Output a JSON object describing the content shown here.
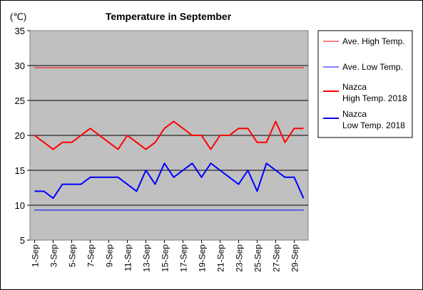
{
  "chart_data": {
    "type": "line",
    "title": "Temperature in September",
    "unit_label": "(℃)",
    "ylim": [
      5,
      35
    ],
    "yticks": [
      5,
      10,
      15,
      20,
      25,
      30,
      35
    ],
    "grid": "horizontal",
    "legend_position": "right",
    "x": [
      "1-Sep",
      "2-Sep",
      "3-Sep",
      "4-Sep",
      "5-Sep",
      "6-Sep",
      "7-Sep",
      "8-Sep",
      "9-Sep",
      "10-Sep",
      "11-Sep",
      "12-Sep",
      "13-Sep",
      "14-Sep",
      "15-Sep",
      "16-Sep",
      "17-Sep",
      "18-Sep",
      "19-Sep",
      "20-Sep",
      "21-Sep",
      "22-Sep",
      "23-Sep",
      "24-Sep",
      "25-Sep",
      "26-Sep",
      "27-Sep",
      "28-Sep",
      "29-Sep",
      "30-Sep"
    ],
    "xtick_labels": [
      "1-Sep",
      "3-Sep",
      "5-Sep",
      "7-Sep",
      "9-Sep",
      "11-Sep",
      "13-Sep",
      "15-Sep",
      "17-Sep",
      "19-Sep",
      "21-Sep",
      "23-Sep",
      "25-Sep",
      "27-Sep",
      "29-Sep"
    ],
    "series": [
      {
        "name": "Ave. High Temp.",
        "color": "#ff0000",
        "style": "thin",
        "values": [
          29.7,
          29.7,
          29.7,
          29.7,
          29.7,
          29.7,
          29.7,
          29.7,
          29.7,
          29.7,
          29.7,
          29.7,
          29.7,
          29.7,
          29.7,
          29.7,
          29.7,
          29.7,
          29.7,
          29.7,
          29.7,
          29.7,
          29.7,
          29.7,
          29.7,
          29.7,
          29.7,
          29.7,
          29.7,
          29.7
        ]
      },
      {
        "name": "Ave. Low Temp.",
        "color": "#0000ff",
        "style": "thin",
        "values": [
          9.3,
          9.3,
          9.3,
          9.3,
          9.3,
          9.3,
          9.3,
          9.3,
          9.3,
          9.3,
          9.3,
          9.3,
          9.3,
          9.3,
          9.3,
          9.3,
          9.3,
          9.3,
          9.3,
          9.3,
          9.3,
          9.3,
          9.3,
          9.3,
          9.3,
          9.3,
          9.3,
          9.3,
          9.3,
          9.3
        ]
      },
      {
        "name": "Nazca\nHigh Temp. 2018",
        "color": "#ff0000",
        "style": "thick",
        "values": [
          20,
          19,
          18,
          19,
          19,
          20,
          21,
          20,
          19,
          18,
          20,
          19,
          18,
          19,
          21,
          22,
          21,
          20,
          20,
          18,
          20,
          20,
          21,
          21,
          19,
          19,
          22,
          19,
          21,
          21
        ]
      },
      {
        "name": "Nazca\nLow Temp. 2018",
        "color": "#0000ff",
        "style": "thick",
        "values": [
          12,
          12,
          11,
          13,
          13,
          13,
          14,
          14,
          14,
          14,
          13,
          12,
          15,
          13,
          16,
          14,
          15,
          16,
          14,
          16,
          15,
          14,
          13,
          15,
          12,
          16,
          15,
          14,
          14,
          11
        ]
      }
    ]
  }
}
